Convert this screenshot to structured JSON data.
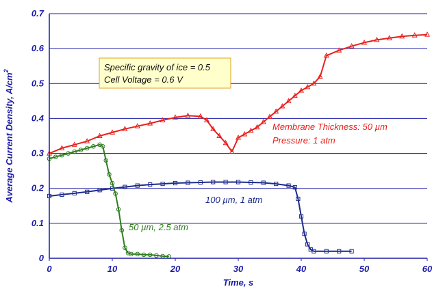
{
  "chart_data": {
    "type": "line",
    "title": "",
    "xlabel": "Time, s",
    "ylabel": "Average Current Density, A/cm",
    "ylabel_superscript": "2",
    "xlim": [
      0,
      60
    ],
    "ylim": [
      0,
      0.7
    ],
    "x_ticks": [
      "0",
      "10",
      "20",
      "30",
      "40",
      "50",
      "60"
    ],
    "y_ticks": [
      "0",
      "0.1",
      "0.2",
      "0.3",
      "0.4",
      "0.5",
      "0.6",
      "0.7"
    ],
    "grid": "horizontal",
    "info_box": [
      "Specific gravity of ice = 0.5",
      "Cell Voltage = 0.6 V"
    ],
    "annotations": [
      {
        "text": "Membrane Thickness: 50 µm",
        "color": "#e8201c"
      },
      {
        "text": "Pressure: 1 atm",
        "color": "#e8201c"
      },
      {
        "text": "100 µm, 1 atm",
        "color": "#1c2a8c"
      },
      {
        "text": "50 µm, 2.5 atm",
        "color": "#2e7d1e"
      }
    ],
    "series": [
      {
        "color": "#e8201c",
        "marker": "triangle",
        "x": [
          0,
          2,
          4,
          6,
          8,
          10,
          12,
          14,
          16,
          18,
          20,
          22,
          24,
          25,
          26,
          27,
          28,
          29,
          30,
          31,
          32,
          33,
          34,
          35,
          36,
          37,
          38,
          39,
          40,
          41,
          42,
          43,
          44,
          46,
          48,
          50,
          52,
          54,
          56,
          58,
          60
        ],
        "y": [
          0.3,
          0.315,
          0.325,
          0.335,
          0.35,
          0.36,
          0.37,
          0.378,
          0.386,
          0.395,
          0.403,
          0.408,
          0.406,
          0.395,
          0.37,
          0.35,
          0.33,
          0.305,
          0.345,
          0.355,
          0.365,
          0.375,
          0.39,
          0.405,
          0.42,
          0.435,
          0.45,
          0.465,
          0.48,
          0.49,
          0.5,
          0.52,
          0.58,
          0.595,
          0.607,
          0.617,
          0.625,
          0.63,
          0.635,
          0.638,
          0.64
        ]
      },
      {
        "color": "#1c2a8c",
        "marker": "square",
        "x": [
          0,
          2,
          4,
          6,
          8,
          10,
          12,
          14,
          16,
          18,
          20,
          22,
          24,
          26,
          28,
          30,
          32,
          34,
          36,
          38,
          39,
          39.5,
          40,
          40.5,
          41,
          41.5,
          42,
          44,
          46,
          48
        ],
        "y": [
          0.178,
          0.182,
          0.186,
          0.19,
          0.195,
          0.2,
          0.204,
          0.208,
          0.211,
          0.213,
          0.215,
          0.216,
          0.217,
          0.218,
          0.218,
          0.218,
          0.217,
          0.216,
          0.213,
          0.208,
          0.203,
          0.17,
          0.12,
          0.07,
          0.04,
          0.025,
          0.02,
          0.02,
          0.02,
          0.02
        ]
      },
      {
        "color": "#2e7d1e",
        "marker": "circle",
        "x": [
          0,
          1,
          2,
          3,
          4,
          5,
          6,
          7,
          8,
          8.5,
          9,
          9.5,
          10,
          10.5,
          11,
          11.5,
          12,
          12.5,
          13,
          14,
          15,
          16,
          17,
          18,
          19
        ],
        "y": [
          0.285,
          0.29,
          0.295,
          0.3,
          0.305,
          0.31,
          0.315,
          0.32,
          0.325,
          0.32,
          0.28,
          0.24,
          0.215,
          0.185,
          0.14,
          0.08,
          0.03,
          0.015,
          0.012,
          0.012,
          0.01,
          0.01,
          0.008,
          0.006,
          0.005
        ]
      }
    ]
  },
  "colors": {
    "axis": "#1a1aa6",
    "grid": "#1a1aa6",
    "info_box_fill": "#ffffcc",
    "info_box_border": "#e0a020"
  }
}
